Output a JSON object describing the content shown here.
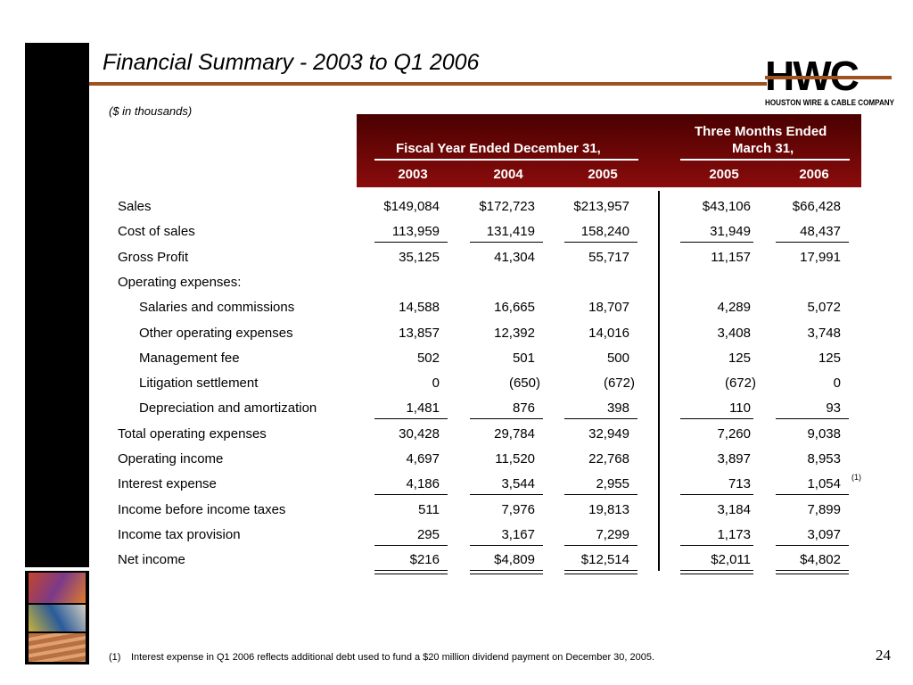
{
  "header": {
    "title": "Financial Summary - 2003 to Q1 2006",
    "subtitle": "($ in thousands)",
    "logo": "HWC",
    "company": "HOUSTON WIRE & CABLE COMPANY"
  },
  "table": {
    "fiscal_header": "Fiscal Year Ended December 31,",
    "quarter_header_lines": [
      "Three Months Ended",
      "March 31,"
    ],
    "columns": [
      "2003",
      "2004",
      "2005",
      "2005",
      "2006"
    ],
    "rows": [
      [
        "Sales",
        "$149,084",
        "$172,723",
        "$213,957",
        "$43,106",
        "$66,428"
      ],
      [
        "Cost of sales",
        "113,959",
        "131,419",
        "158,240",
        "31,949",
        "48,437"
      ],
      [
        "Gross Profit",
        "35,125",
        "41,304",
        "55,717",
        "11,157",
        "17,991"
      ],
      [
        "Operating expenses:"
      ],
      [
        "Salaries and commissions",
        "14,588",
        "16,665",
        "18,707",
        "4,289",
        "5,072"
      ],
      [
        "Other operating expenses",
        "13,857",
        "12,392",
        "14,016",
        "3,408",
        "3,748"
      ],
      [
        "Management fee",
        "502",
        "501",
        "500",
        "125",
        "125"
      ],
      [
        "Litigation settlement",
        "0",
        "(650)",
        "(672)",
        "(672)",
        "0"
      ],
      [
        "Depreciation and amortization",
        "1,481",
        "876",
        "398",
        "110",
        "93"
      ],
      [
        "Total operating expenses",
        "30,428",
        "29,784",
        "32,949",
        "7,260",
        "9,038"
      ],
      [
        "Operating income",
        "4,697",
        "11,520",
        "22,768",
        "3,897",
        "8,953"
      ],
      [
        "Interest expense",
        "4,186",
        "3,544",
        "2,955",
        "713",
        "1,054"
      ],
      [
        "Income before income taxes",
        "511",
        "7,976",
        "19,813",
        "3,184",
        "7,899"
      ],
      [
        "Income tax provision",
        "295",
        "3,167",
        "7,299",
        "1,173",
        "3,097"
      ],
      [
        "Net income",
        "$216",
        "$4,809",
        "$12,514",
        "$2,011",
        "$4,802"
      ]
    ],
    "row_note": "(1)"
  },
  "footnote": {
    "marker": "(1)",
    "text": "Interest expense in Q1 2006 reflects additional debt used to fund a $20 million dividend payment on December 30, 2005."
  },
  "page_number": "24"
}
